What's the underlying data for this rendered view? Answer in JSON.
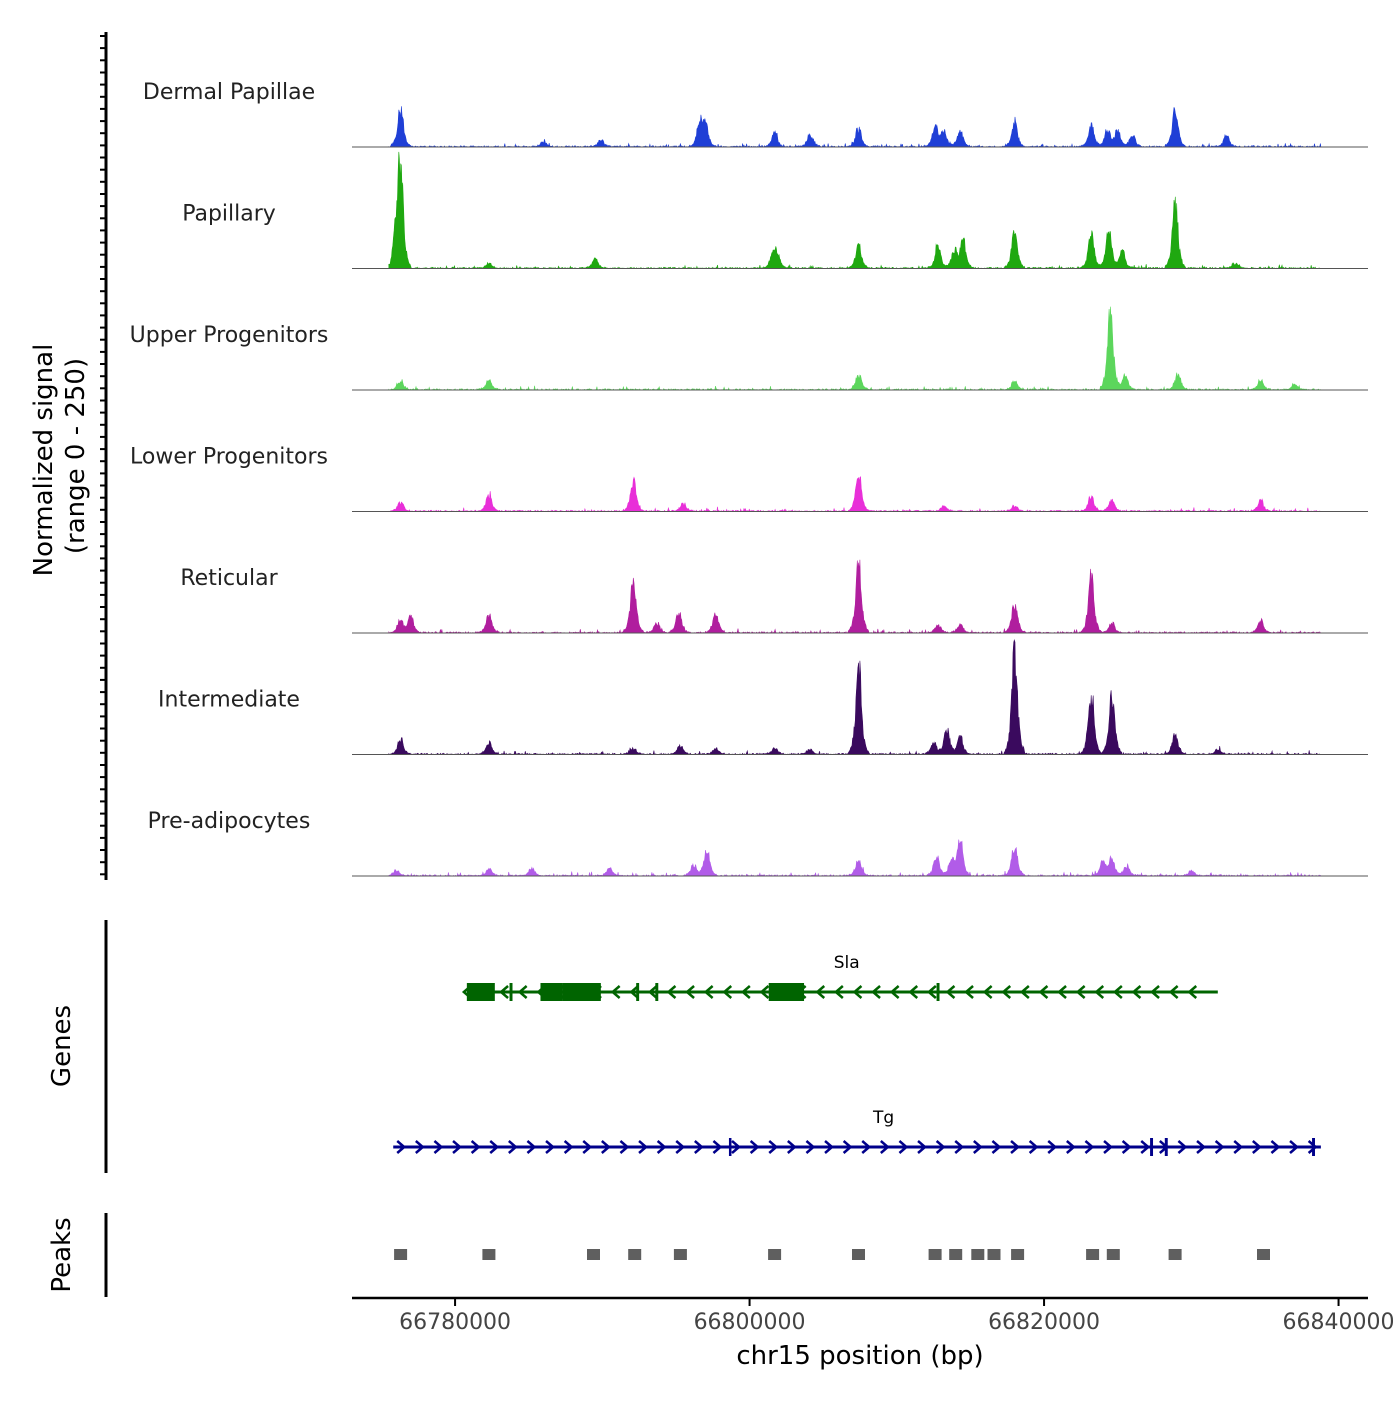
{
  "chart_data": {
    "type": "area",
    "title": "",
    "ylabel": "Normalized signal",
    "ylabel_range": "(range 0 - 250)",
    "ylim": [
      0,
      250
    ],
    "genes_label": "Genes",
    "peaks_label": "Peaks",
    "xlabel": "chr15 position (bp)",
    "xlim": [
      66773000,
      66842000
    ],
    "x_ticks": [
      66780000,
      66800000,
      66820000,
      66840000
    ],
    "x_tick_labels": [
      "66780000",
      "66800000",
      "66820000",
      "66840000"
    ],
    "data_extent": [
      66775500,
      66838800
    ],
    "tracks": [
      {
        "name": "Dermal Papillae",
        "color": "#1f3fd6",
        "peaks": [
          [
            66776300,
            95
          ],
          [
            66786000,
            12
          ],
          [
            66789900,
            18
          ],
          [
            66796600,
            55
          ],
          [
            66797000,
            60
          ],
          [
            66801700,
            35
          ],
          [
            66804100,
            30
          ],
          [
            66807400,
            48
          ],
          [
            66812600,
            52
          ],
          [
            66813200,
            40
          ],
          [
            66814300,
            45
          ],
          [
            66818000,
            62
          ],
          [
            66823200,
            55
          ],
          [
            66824300,
            42
          ],
          [
            66825000,
            40
          ],
          [
            66826000,
            30
          ],
          [
            66828900,
            98
          ],
          [
            66832400,
            28
          ]
        ]
      },
      {
        "name": "Papillary",
        "color": "#1fa810",
        "peaks": [
          [
            66776300,
            250
          ],
          [
            66776000,
            80
          ],
          [
            66782300,
            12
          ],
          [
            66789500,
            25
          ],
          [
            66801600,
            35
          ],
          [
            66801900,
            30
          ],
          [
            66807400,
            58
          ],
          [
            66812800,
            55
          ],
          [
            66813900,
            45
          ],
          [
            66814500,
            70
          ],
          [
            66818000,
            95
          ],
          [
            66823200,
            90
          ],
          [
            66824400,
            100
          ],
          [
            66825300,
            45
          ],
          [
            66828900,
            170
          ],
          [
            66833000,
            12
          ]
        ]
      },
      {
        "name": "Upper Progenitors",
        "color": "#5cd65c",
        "peaks": [
          [
            66776300,
            22
          ],
          [
            66782300,
            26
          ],
          [
            66807400,
            38
          ],
          [
            66818000,
            22
          ],
          [
            66824500,
            210
          ],
          [
            66825500,
            40
          ],
          [
            66829100,
            40
          ],
          [
            66834700,
            25
          ],
          [
            66837000,
            14
          ]
        ]
      },
      {
        "name": "Lower Progenitors",
        "color": "#e82fd8",
        "peaks": [
          [
            66776300,
            22
          ],
          [
            66782300,
            42
          ],
          [
            66792100,
            78
          ],
          [
            66795500,
            20
          ],
          [
            66807400,
            94
          ],
          [
            66813200,
            12
          ],
          [
            66818000,
            14
          ],
          [
            66823200,
            38
          ],
          [
            66824600,
            28
          ],
          [
            66834700,
            28
          ]
        ]
      },
      {
        "name": "Reticular",
        "color": "#b01e9e",
        "peaks": [
          [
            66776300,
            32
          ],
          [
            66777000,
            40
          ],
          [
            66782300,
            45
          ],
          [
            66792100,
            132
          ],
          [
            66793700,
            25
          ],
          [
            66795200,
            50
          ],
          [
            66797700,
            48
          ],
          [
            66807400,
            180
          ],
          [
            66812800,
            20
          ],
          [
            66814300,
            20
          ],
          [
            66818000,
            75
          ],
          [
            66823200,
            140
          ],
          [
            66824600,
            25
          ],
          [
            66834700,
            32
          ]
        ]
      },
      {
        "name": "Intermediate",
        "color": "#3a0a5e",
        "peaks": [
          [
            66776300,
            38
          ],
          [
            66782300,
            30
          ],
          [
            66792100,
            15
          ],
          [
            66795300,
            20
          ],
          [
            66797700,
            15
          ],
          [
            66801700,
            15
          ],
          [
            66804100,
            12
          ],
          [
            66807400,
            218
          ],
          [
            66812500,
            30
          ],
          [
            66813400,
            65
          ],
          [
            66814300,
            45
          ],
          [
            66818000,
            265
          ],
          [
            66823200,
            150
          ],
          [
            66824600,
            150
          ],
          [
            66828900,
            50
          ],
          [
            66831800,
            12
          ]
        ]
      },
      {
        "name": "Pre-adipocytes",
        "color": "#b15ce8",
        "peaks": [
          [
            66776000,
            14
          ],
          [
            66782300,
            18
          ],
          [
            66785200,
            18
          ],
          [
            66790500,
            18
          ],
          [
            66796200,
            28
          ],
          [
            66797100,
            65
          ],
          [
            66807400,
            40
          ],
          [
            66812700,
            50
          ],
          [
            66813700,
            40
          ],
          [
            66814300,
            92
          ],
          [
            66818000,
            78
          ],
          [
            66824000,
            35
          ],
          [
            66824600,
            45
          ],
          [
            66825600,
            25
          ],
          [
            66830000,
            12
          ]
        ]
      }
    ],
    "genes": [
      {
        "name": "Sla",
        "strand": "-",
        "start": 66780800,
        "end": 66831800,
        "color": "#006400",
        "exons": [
          [
            66780800,
            66782700,
            "wide"
          ],
          [
            66785800,
            66787300,
            "wide"
          ],
          [
            66787300,
            66789900,
            "wide"
          ],
          [
            66801300,
            66803700,
            "wide"
          ],
          [
            66792300,
            66792500,
            "tick"
          ],
          [
            66793600,
            66793800,
            "tick"
          ],
          [
            66812700,
            66812900,
            "tick"
          ],
          [
            66783700,
            66783900,
            "tick"
          ]
        ]
      },
      {
        "name": "Tg",
        "strand": "+",
        "start": 66775800,
        "end": 66838800,
        "color": "#00008b",
        "exons": [
          [
            66798600,
            66798700,
            "tick"
          ],
          [
            66827200,
            66827400,
            "tick"
          ],
          [
            66828200,
            66828400,
            "tick"
          ],
          [
            66838200,
            66838400,
            "tick"
          ]
        ]
      }
    ],
    "peak_regions": [
      66776300,
      66782300,
      66789400,
      66792200,
      66795300,
      66801700,
      66807400,
      66812600,
      66814000,
      66815500,
      66816600,
      66818200,
      66823300,
      66824700,
      66828900,
      66834900
    ]
  }
}
